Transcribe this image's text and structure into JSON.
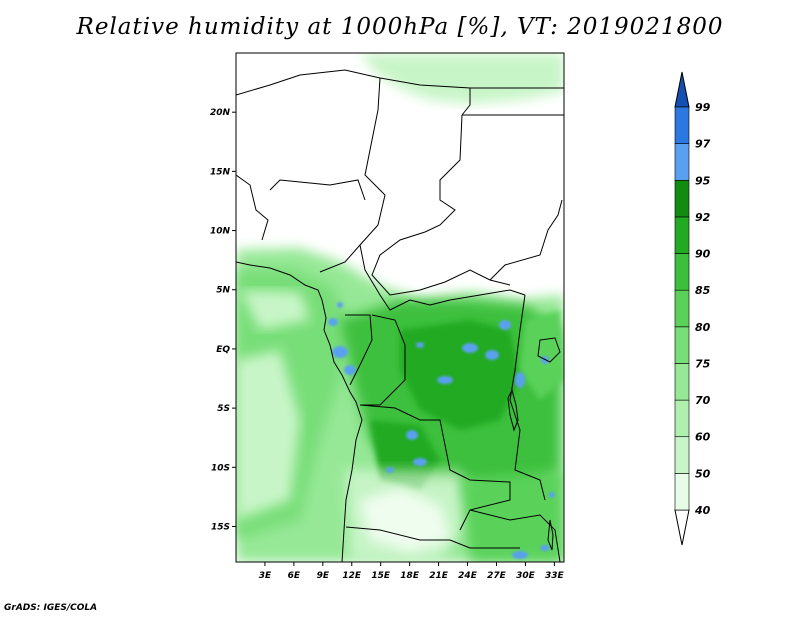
{
  "title": "Relative humidity at 1000hPa [%], VT: 2019021800",
  "credit": "GrADS: IGES/COLA",
  "map": {
    "variable": "Relative humidity",
    "level": "1000hPa",
    "unit": "%",
    "valid_time": "2019021800",
    "lon_range": [
      0,
      34
    ],
    "lat_range": [
      -18,
      25
    ],
    "lon_ticks": [
      {
        "value": 3,
        "label": "3E"
      },
      {
        "value": 6,
        "label": "6E"
      },
      {
        "value": 9,
        "label": "9E"
      },
      {
        "value": 12,
        "label": "12E"
      },
      {
        "value": 15,
        "label": "15E"
      },
      {
        "value": 18,
        "label": "18E"
      },
      {
        "value": 21,
        "label": "21E"
      },
      {
        "value": 24,
        "label": "24E"
      },
      {
        "value": 27,
        "label": "27E"
      },
      {
        "value": 30,
        "label": "30E"
      },
      {
        "value": 33,
        "label": "33E"
      }
    ],
    "lat_ticks": [
      {
        "value": 20,
        "label": "20N"
      },
      {
        "value": 15,
        "label": "15N"
      },
      {
        "value": 10,
        "label": "10N"
      },
      {
        "value": 5,
        "label": "5N"
      },
      {
        "value": 0,
        "label": "EQ"
      },
      {
        "value": -5,
        "label": "5S"
      },
      {
        "value": -10,
        "label": "10S"
      },
      {
        "value": -15,
        "label": "15S"
      }
    ]
  },
  "colorbar": {
    "levels": [
      "40",
      "50",
      "60",
      "70",
      "75",
      "80",
      "85",
      "90",
      "92",
      "95",
      "97",
      "99"
    ],
    "colors": [
      "#ffffff",
      "#e6fce6",
      "#c8f5c8",
      "#aff0af",
      "#96e896",
      "#78de78",
      "#5ad25a",
      "#3cc03c",
      "#22aa22",
      "#118c11",
      "#5aa0f0",
      "#2a78e0",
      "#1450b4"
    ]
  }
}
